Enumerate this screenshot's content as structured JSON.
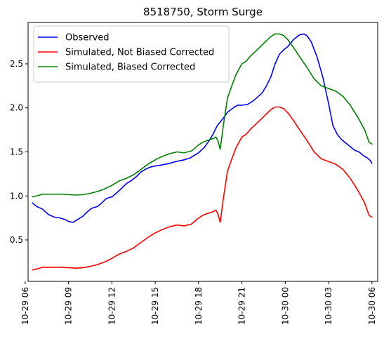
{
  "chart_data": {
    "type": "line",
    "title": "8518750, Storm Surge",
    "xlabel": "",
    "ylabel": "",
    "x_unit": "hours",
    "xlim": [
      6.2,
      30.4
    ],
    "ylim": [
      0.03,
      2.97
    ],
    "x_ticks": [
      {
        "value": 6,
        "label": "10-29 06"
      },
      {
        "value": 9,
        "label": "10-29 09"
      },
      {
        "value": 12,
        "label": "10-29 12"
      },
      {
        "value": 15,
        "label": "10-29 15"
      },
      {
        "value": 18,
        "label": "10-29 18"
      },
      {
        "value": 21,
        "label": "10-29 21"
      },
      {
        "value": 24,
        "label": "10-30 00"
      },
      {
        "value": 27,
        "label": "10-30 03"
      },
      {
        "value": 30,
        "label": "10-30 06"
      }
    ],
    "y_ticks": [
      {
        "value": 0.5,
        "label": "0.5"
      },
      {
        "value": 1.0,
        "label": "1.0"
      },
      {
        "value": 1.5,
        "label": "1.5"
      },
      {
        "value": 2.0,
        "label": "2.0"
      },
      {
        "value": 2.5,
        "label": "2.5"
      }
    ],
    "legend_position": "upper-left",
    "grid": false,
    "series": [
      {
        "name": "Observed",
        "color": "#0000ff",
        "x": [
          6.5,
          6.8,
          7.2,
          7.6,
          8.0,
          8.4,
          8.8,
          9.0,
          9.3,
          9.7,
          10.0,
          10.3,
          10.6,
          11.0,
          11.3,
          11.6,
          12.0,
          12.3,
          12.7,
          13.0,
          13.4,
          13.7,
          14.0,
          14.4,
          14.7,
          15.0,
          15.4,
          15.7,
          16.0,
          16.4,
          16.7,
          17.0,
          17.4,
          17.7,
          18.0,
          18.4,
          18.7,
          19.0,
          19.3,
          19.7,
          20.0,
          20.4,
          20.7,
          21.0,
          21.4,
          21.7,
          22.0,
          22.4,
          22.7,
          23.0,
          23.3,
          23.6,
          23.9,
          24.2,
          24.6,
          25.0,
          25.3,
          25.5,
          25.8,
          26.2,
          26.6,
          27.0,
          27.3,
          27.6,
          27.9,
          28.2,
          28.5,
          28.8,
          29.1,
          29.4,
          29.7,
          29.9,
          30.0
        ],
        "y": [
          0.92,
          0.88,
          0.85,
          0.79,
          0.76,
          0.75,
          0.73,
          0.71,
          0.7,
          0.74,
          0.77,
          0.82,
          0.86,
          0.88,
          0.92,
          0.97,
          0.99,
          1.03,
          1.09,
          1.14,
          1.18,
          1.22,
          1.27,
          1.31,
          1.33,
          1.34,
          1.35,
          1.36,
          1.37,
          1.39,
          1.4,
          1.41,
          1.43,
          1.46,
          1.49,
          1.55,
          1.62,
          1.7,
          1.8,
          1.88,
          1.95,
          2.0,
          2.03,
          2.03,
          2.04,
          2.07,
          2.11,
          2.17,
          2.25,
          2.35,
          2.5,
          2.61,
          2.66,
          2.7,
          2.78,
          2.83,
          2.84,
          2.82,
          2.75,
          2.58,
          2.35,
          2.05,
          1.8,
          1.7,
          1.64,
          1.6,
          1.56,
          1.52,
          1.5,
          1.46,
          1.43,
          1.4,
          1.37
        ]
      },
      {
        "name": "Simulated, Not Biased Corrected",
        "color": "#ff0000",
        "x": [
          6.5,
          6.8,
          7.2,
          7.6,
          8.0,
          8.5,
          9.0,
          9.5,
          10.0,
          10.5,
          11.0,
          11.5,
          12.0,
          12.5,
          13.0,
          13.5,
          14.0,
          14.5,
          15.0,
          15.5,
          16.0,
          16.5,
          17.0,
          17.5,
          17.8,
          18.0,
          18.3,
          18.6,
          19.0,
          19.2,
          19.35,
          19.5,
          19.7,
          20.0,
          20.3,
          20.6,
          21.0,
          21.3,
          21.6,
          22.0,
          22.5,
          23.0,
          23.3,
          23.6,
          23.9,
          24.2,
          24.6,
          25.0,
          25.5,
          26.0,
          26.5,
          27.0,
          27.5,
          28.0,
          28.5,
          29.0,
          29.5,
          29.8,
          30.0
        ],
        "y": [
          0.16,
          0.17,
          0.19,
          0.19,
          0.19,
          0.19,
          0.185,
          0.18,
          0.185,
          0.2,
          0.22,
          0.25,
          0.29,
          0.34,
          0.37,
          0.41,
          0.47,
          0.53,
          0.58,
          0.62,
          0.65,
          0.67,
          0.66,
          0.68,
          0.72,
          0.75,
          0.78,
          0.8,
          0.82,
          0.84,
          0.79,
          0.7,
          0.95,
          1.28,
          1.42,
          1.55,
          1.67,
          1.7,
          1.76,
          1.82,
          1.9,
          1.98,
          2.01,
          2.01,
          1.99,
          1.94,
          1.85,
          1.75,
          1.63,
          1.5,
          1.42,
          1.39,
          1.36,
          1.3,
          1.2,
          1.07,
          0.92,
          0.78,
          0.76
        ]
      },
      {
        "name": "Simulated, Biased Corrected",
        "color": "#008000",
        "x": [
          6.5,
          6.8,
          7.2,
          7.6,
          8.0,
          8.5,
          9.0,
          9.5,
          10.0,
          10.5,
          11.0,
          11.5,
          12.0,
          12.5,
          13.0,
          13.5,
          14.0,
          14.5,
          15.0,
          15.5,
          16.0,
          16.5,
          17.0,
          17.5,
          17.8,
          18.0,
          18.3,
          18.6,
          19.0,
          19.2,
          19.35,
          19.5,
          19.7,
          20.0,
          20.3,
          20.6,
          21.0,
          21.3,
          21.6,
          22.0,
          22.5,
          23.0,
          23.3,
          23.6,
          23.9,
          24.2,
          24.6,
          25.0,
          25.5,
          26.0,
          26.5,
          27.0,
          27.5,
          28.0,
          28.5,
          29.0,
          29.5,
          29.8,
          30.0
        ],
        "y": [
          0.99,
          1.0,
          1.02,
          1.02,
          1.02,
          1.02,
          1.015,
          1.01,
          1.015,
          1.03,
          1.05,
          1.08,
          1.12,
          1.17,
          1.2,
          1.24,
          1.3,
          1.36,
          1.41,
          1.45,
          1.48,
          1.5,
          1.49,
          1.51,
          1.55,
          1.58,
          1.61,
          1.63,
          1.65,
          1.67,
          1.62,
          1.53,
          1.78,
          2.11,
          2.25,
          2.38,
          2.5,
          2.53,
          2.59,
          2.65,
          2.73,
          2.81,
          2.84,
          2.84,
          2.82,
          2.77,
          2.68,
          2.58,
          2.46,
          2.33,
          2.25,
          2.22,
          2.19,
          2.13,
          2.03,
          1.9,
          1.75,
          1.61,
          1.59
        ]
      }
    ]
  }
}
